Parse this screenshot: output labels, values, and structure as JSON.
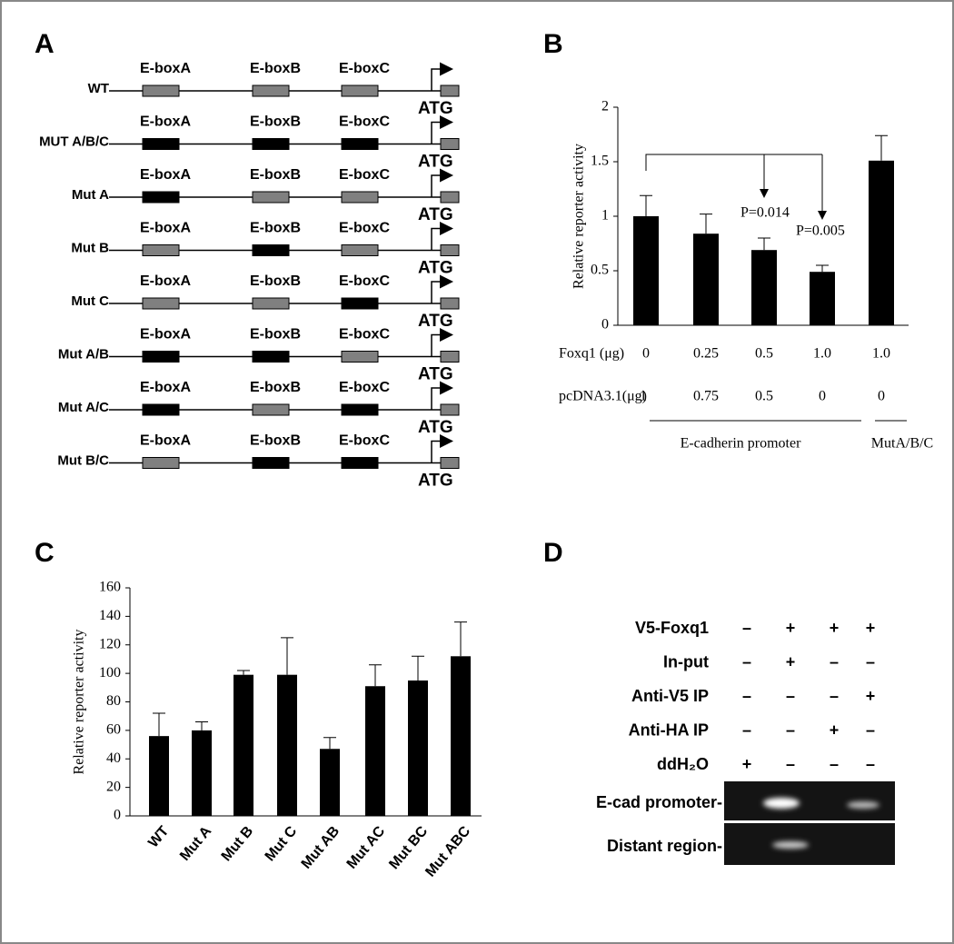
{
  "panel_a": {
    "letter": "A",
    "box_labels": [
      "E-boxA",
      "E-boxB",
      "E-boxC"
    ],
    "start_label": "ATG",
    "constructs": [
      {
        "label": "WT",
        "boxes": [
          "#808080",
          "#808080",
          "#808080"
        ]
      },
      {
        "label": "MUT A/B/C",
        "boxes": [
          "#000000",
          "#000000",
          "#000000"
        ]
      },
      {
        "label": "Mut A",
        "boxes": [
          "#000000",
          "#808080",
          "#808080"
        ]
      },
      {
        "label": "Mut B",
        "boxes": [
          "#808080",
          "#000000",
          "#808080"
        ]
      },
      {
        "label": "Mut C",
        "boxes": [
          "#808080",
          "#808080",
          "#000000"
        ]
      },
      {
        "label": "Mut A/B",
        "boxes": [
          "#000000",
          "#000000",
          "#808080"
        ]
      },
      {
        "label": "Mut A/C",
        "boxes": [
          "#000000",
          "#808080",
          "#000000"
        ]
      },
      {
        "label": "Mut B/C",
        "boxes": [
          "#808080",
          "#000000",
          "#000000"
        ]
      }
    ]
  },
  "chart_data": [
    {
      "type": "bar",
      "panel": "B",
      "ylabel": "Relative reporter activity",
      "color": "#000000",
      "values": [
        1.0,
        0.84,
        0.69,
        0.49,
        1.51
      ],
      "errors": [
        0.19,
        0.18,
        0.11,
        0.06,
        0.23
      ],
      "ylim": [
        0,
        2
      ],
      "yticks": [
        0,
        0.5,
        1,
        1.5,
        2
      ],
      "table": [
        {
          "label": "Foxq1 (μg)",
          "cells": [
            "0",
            "0.25",
            "0.5",
            "1.0",
            "1.0"
          ]
        },
        {
          "label": "pcDNA3.1(μg)",
          "cells": [
            "1",
            "0.75",
            "0.5",
            "0",
            "0"
          ]
        }
      ],
      "groups": [
        "E-cadherin promoter",
        "MutA/B/C"
      ],
      "annotations": [
        "P=0.014",
        "P=0.005"
      ]
    },
    {
      "type": "bar",
      "panel": "C",
      "ylabel": "Relative reporter activity",
      "color": "#000000",
      "categories": [
        "WT",
        "Mut A",
        "Mut B",
        "Mut C",
        "Mut AB",
        "Mut AC",
        "Mut BC",
        "Mut ABC"
      ],
      "values": [
        56,
        60,
        99,
        99,
        47,
        91,
        95,
        112
      ],
      "errors": [
        16,
        6,
        3,
        26,
        8,
        15,
        17,
        24
      ],
      "ylim": [
        0,
        160
      ],
      "yticks": [
        0,
        20,
        40,
        60,
        80,
        100,
        120,
        140,
        160
      ]
    }
  ],
  "panel_d": {
    "letter": "D",
    "rows": [
      {
        "label": "V5-Foxq1",
        "cells": [
          "–",
          "+",
          "+",
          "+"
        ]
      },
      {
        "label": "In-put",
        "cells": [
          "–",
          "+",
          "–",
          "–"
        ]
      },
      {
        "label": "Anti-V5 IP",
        "cells": [
          "–",
          "–",
          "–",
          "+"
        ]
      },
      {
        "label": "Anti-HA IP",
        "cells": [
          "–",
          "–",
          "+",
          "–"
        ]
      },
      {
        "label": "ddH₂O",
        "cells": [
          "+",
          "–",
          "–",
          "–"
        ]
      }
    ],
    "gel_labels": [
      "E-cad promoter-",
      "Distant region-"
    ]
  }
}
